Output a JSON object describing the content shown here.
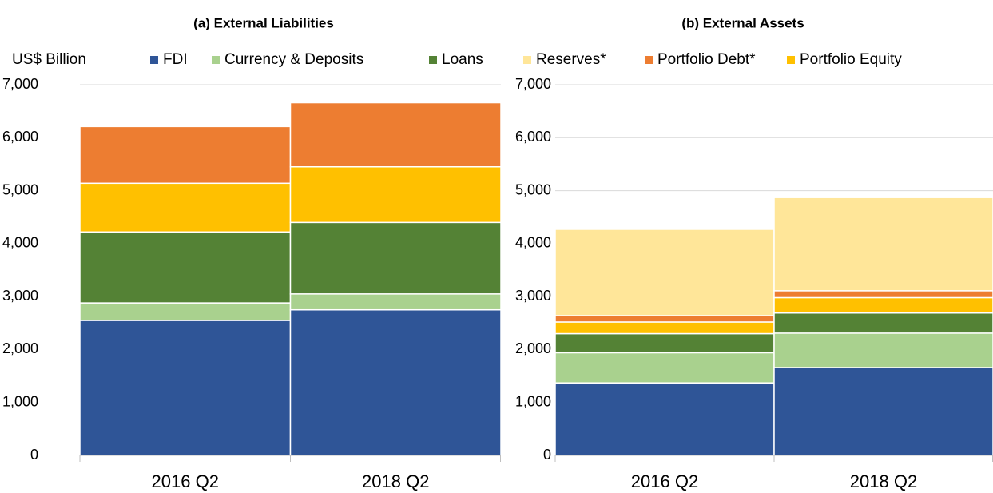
{
  "y_axis_label": "US$ Billion",
  "chart_data": [
    {
      "type": "stacked_bar",
      "title": "(a)   External Liabilities",
      "categories": [
        "2016 Q2",
        "2018 Q2"
      ],
      "series": [
        {
          "color": "#2f5597",
          "values": [
            2550,
            2750
          ]
        },
        {
          "color": "#a9d18e",
          "values": [
            330,
            300
          ]
        },
        {
          "color": "#548235",
          "values": [
            1340,
            1350
          ]
        },
        {
          "color": "#ffc000",
          "values": [
            920,
            1050
          ]
        },
        {
          "color": "#ed7d31",
          "values": [
            1070,
            1210
          ]
        }
      ],
      "ylim": [
        0,
        7000
      ],
      "yticks": [
        0,
        {
          "value": 1000,
          "label": "1,000"
        },
        {
          "value": 2000,
          "label": "2,000"
        },
        {
          "value": 3000,
          "label": "3,000"
        },
        {
          "value": 4000,
          "label": "4,000"
        },
        {
          "value": 5000,
          "label": "5,000"
        },
        {
          "value": 6000,
          "label": "6,000"
        },
        {
          "value": 7000,
          "label": "7,000"
        }
      ],
      "grid": true
    },
    {
      "type": "stacked_bar",
      "title": "(b)   External Assets",
      "categories": [
        "2016 Q2",
        "2018 Q2"
      ],
      "series": [
        {
          "name": "FDI",
          "color": "#2f5597",
          "values": [
            1370,
            1660
          ]
        },
        {
          "name": "Currency & Deposits",
          "color": "#a9d18e",
          "values": [
            570,
            650
          ]
        },
        {
          "name": "Loans",
          "color": "#548235",
          "values": [
            360,
            380
          ]
        },
        {
          "name": "Portfolio Equity",
          "color": "#ffc000",
          "values": [
            220,
            290
          ]
        },
        {
          "name": "Portfolio Debt*",
          "color": "#ed7d31",
          "values": [
            120,
            130
          ]
        },
        {
          "name": "Reserves*",
          "color": "#ffe699",
          "values": [
            1630,
            1760
          ]
        }
      ],
      "ylim": [
        0,
        7000
      ],
      "yticks": [
        0,
        {
          "value": 1000,
          "label": "1,000"
        },
        {
          "value": 2000,
          "label": "2,000"
        },
        {
          "value": 3000,
          "label": "3,000"
        },
        {
          "value": 4000,
          "label": "4,000"
        },
        {
          "value": 5000,
          "label": "5,000"
        },
        {
          "value": 6000,
          "label": "6,000"
        },
        {
          "value": 7000,
          "label": "7,000"
        }
      ],
      "grid": true
    }
  ]
}
